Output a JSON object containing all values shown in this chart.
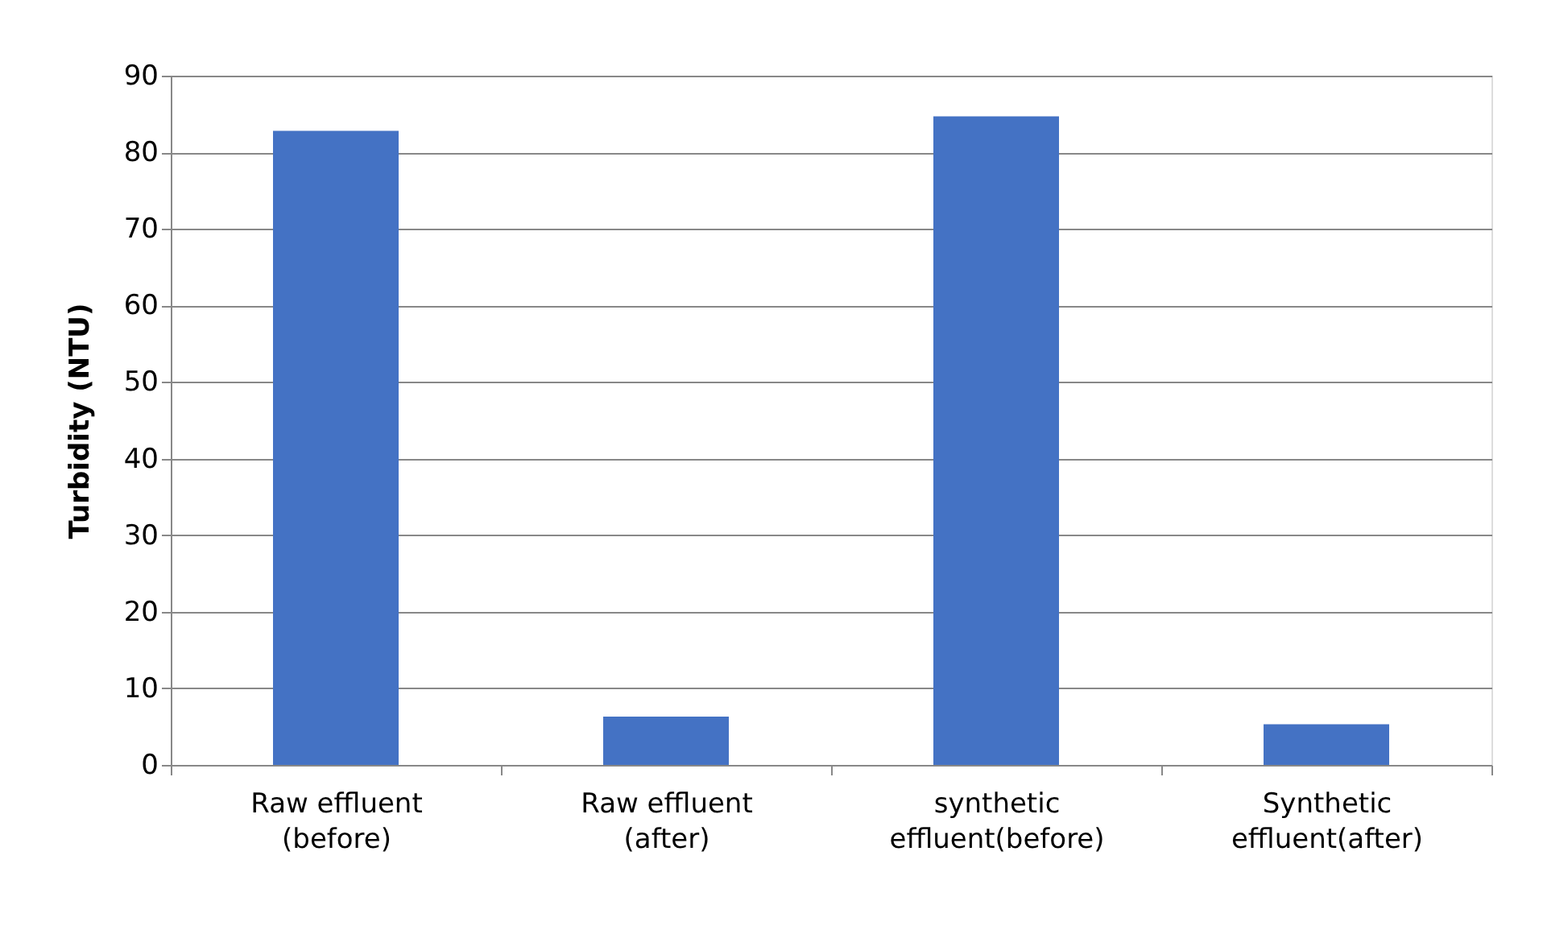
{
  "chart_data": {
    "type": "bar",
    "ylabel": "Turbidity (NTU)",
    "categories": [
      "Raw effluent\n(before)",
      "Raw effluent\n(after)",
      "synthetic\neffluent(before)",
      "Synthetic\neffluent(after)"
    ],
    "values": [
      82.8,
      6.3,
      84.7,
      5.3
    ],
    "color": "#4472c4",
    "ylim": [
      0,
      90
    ],
    "yticks": [
      0,
      10,
      20,
      30,
      40,
      50,
      60,
      70,
      80,
      90
    ],
    "grid": "y"
  }
}
